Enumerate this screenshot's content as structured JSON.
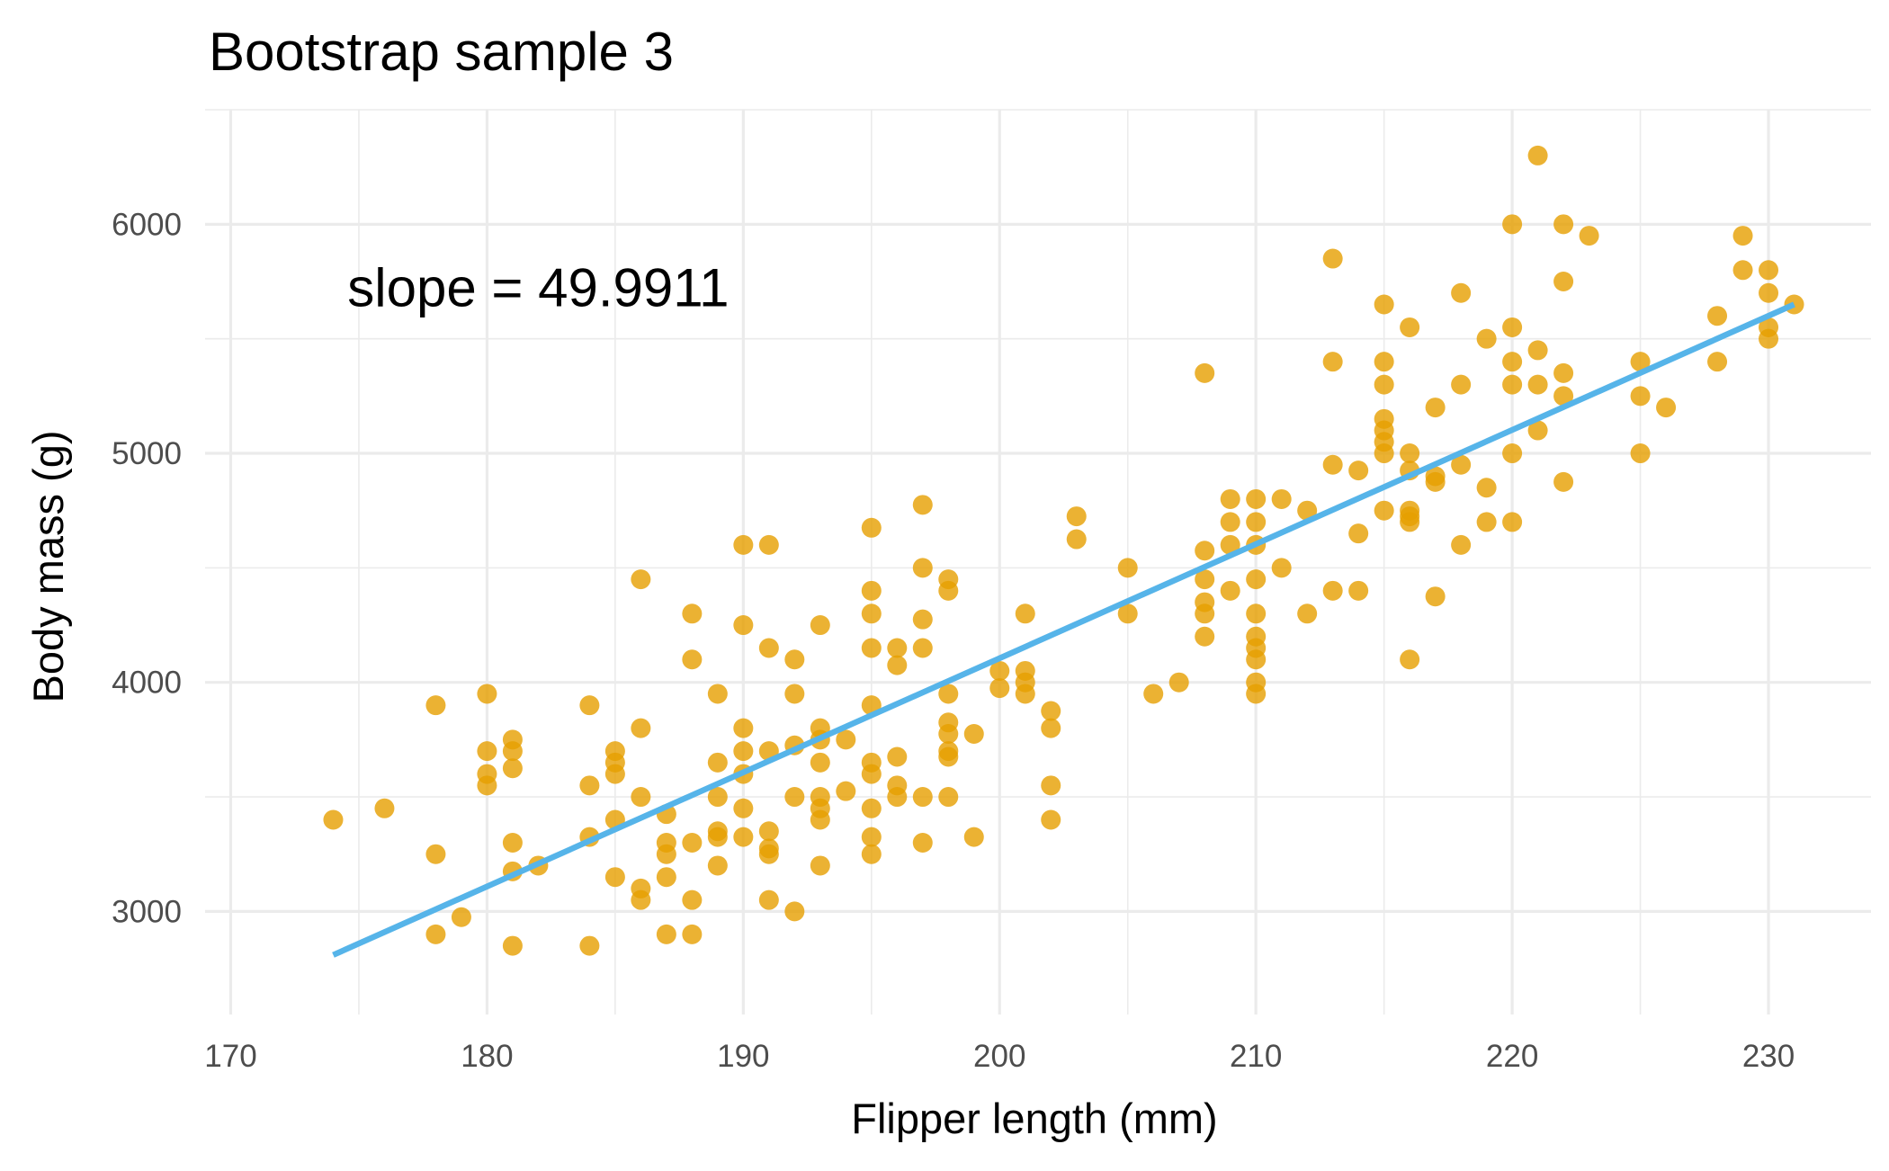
{
  "chart_data": {
    "type": "scatter",
    "title": "Bootstrap sample 3",
    "xlabel": "Flipper length (mm)",
    "ylabel": "Body mass (g)",
    "xlim": [
      169,
      234
    ],
    "ylim": [
      2550,
      6500
    ],
    "x_ticks": [
      170,
      180,
      190,
      200,
      210,
      220,
      230
    ],
    "y_ticks": [
      3000,
      4000,
      5000,
      6000
    ],
    "x_tick_labels": [
      "170",
      "180",
      "190",
      "200",
      "210",
      "220",
      "230"
    ],
    "y_tick_labels": [
      "3000",
      "4000",
      "5000",
      "6000"
    ],
    "grid": true,
    "point_color": "#E69F00",
    "line_color": "#56B4E9",
    "annotation": {
      "text": "slope = 49.9911",
      "x": 182,
      "y": 5720
    },
    "fit_line": {
      "x1": 174,
      "y1": 2810,
      "x2": 231,
      "y2": 5650
    },
    "points": [
      [
        174,
        3400
      ],
      [
        176,
        3450
      ],
      [
        178,
        3900
      ],
      [
        178,
        3250
      ],
      [
        178,
        2900
      ],
      [
        179,
        2975
      ],
      [
        180,
        3950
      ],
      [
        180,
        3700
      ],
      [
        180,
        3600
      ],
      [
        180,
        3550
      ],
      [
        181,
        3750
      ],
      [
        181,
        3700
      ],
      [
        181,
        3625
      ],
      [
        181,
        3300
      ],
      [
        181,
        3175
      ],
      [
        181,
        2850
      ],
      [
        182,
        3200
      ],
      [
        184,
        3900
      ],
      [
        184,
        3550
      ],
      [
        184,
        3325
      ],
      [
        184,
        2850
      ],
      [
        185,
        3700
      ],
      [
        185,
        3650
      ],
      [
        185,
        3600
      ],
      [
        185,
        3400
      ],
      [
        185,
        3150
      ],
      [
        186,
        4450
      ],
      [
        186,
        3800
      ],
      [
        186,
        3500
      ],
      [
        186,
        3100
      ],
      [
        186,
        3050
      ],
      [
        187,
        3425
      ],
      [
        187,
        3300
      ],
      [
        187,
        3250
      ],
      [
        187,
        3150
      ],
      [
        187,
        2900
      ],
      [
        188,
        4300
      ],
      [
        188,
        4100
      ],
      [
        188,
        3300
      ],
      [
        188,
        3050
      ],
      [
        188,
        2900
      ],
      [
        189,
        3950
      ],
      [
        189,
        3650
      ],
      [
        189,
        3500
      ],
      [
        189,
        3350
      ],
      [
        189,
        3325
      ],
      [
        189,
        3200
      ],
      [
        190,
        4600
      ],
      [
        190,
        4250
      ],
      [
        190,
        3800
      ],
      [
        190,
        3700
      ],
      [
        190,
        3600
      ],
      [
        190,
        3450
      ],
      [
        190,
        3325
      ],
      [
        191,
        4600
      ],
      [
        191,
        4150
      ],
      [
        191,
        3700
      ],
      [
        191,
        3350
      ],
      [
        191,
        3275
      ],
      [
        191,
        3250
      ],
      [
        191,
        3050
      ],
      [
        192,
        4100
      ],
      [
        192,
        3950
      ],
      [
        192,
        3725
      ],
      [
        192,
        3500
      ],
      [
        192,
        3000
      ],
      [
        193,
        4250
      ],
      [
        193,
        3800
      ],
      [
        193,
        3750
      ],
      [
        193,
        3650
      ],
      [
        193,
        3500
      ],
      [
        193,
        3450
      ],
      [
        193,
        3400
      ],
      [
        193,
        3200
      ],
      [
        194,
        3750
      ],
      [
        194,
        3525
      ],
      [
        195,
        4675
      ],
      [
        195,
        4400
      ],
      [
        195,
        4300
      ],
      [
        195,
        4150
      ],
      [
        195,
        3900
      ],
      [
        195,
        3650
      ],
      [
        195,
        3600
      ],
      [
        195,
        3450
      ],
      [
        195,
        3325
      ],
      [
        195,
        3250
      ],
      [
        196,
        4150
      ],
      [
        196,
        4075
      ],
      [
        196,
        3675
      ],
      [
        196,
        3550
      ],
      [
        196,
        3500
      ],
      [
        197,
        4775
      ],
      [
        197,
        4500
      ],
      [
        197,
        4275
      ],
      [
        197,
        4150
      ],
      [
        197,
        3500
      ],
      [
        197,
        3300
      ],
      [
        198,
        4450
      ],
      [
        198,
        4400
      ],
      [
        198,
        3950
      ],
      [
        198,
        3825
      ],
      [
        198,
        3775
      ],
      [
        198,
        3700
      ],
      [
        198,
        3675
      ],
      [
        198,
        3500
      ],
      [
        199,
        3775
      ],
      [
        199,
        3325
      ],
      [
        200,
        4050
      ],
      [
        200,
        3975
      ],
      [
        201,
        4300
      ],
      [
        201,
        4050
      ],
      [
        201,
        4000
      ],
      [
        201,
        3950
      ],
      [
        202,
        3875
      ],
      [
        202,
        3800
      ],
      [
        202,
        3550
      ],
      [
        202,
        3400
      ],
      [
        203,
        4725
      ],
      [
        203,
        4625
      ],
      [
        205,
        4500
      ],
      [
        205,
        4300
      ],
      [
        206,
        3950
      ],
      [
        207,
        4000
      ],
      [
        208,
        5350
      ],
      [
        208,
        4575
      ],
      [
        208,
        4450
      ],
      [
        208,
        4350
      ],
      [
        208,
        4300
      ],
      [
        208,
        4200
      ],
      [
        209,
        4800
      ],
      [
        209,
        4700
      ],
      [
        209,
        4600
      ],
      [
        209,
        4400
      ],
      [
        210,
        4800
      ],
      [
        210,
        4700
      ],
      [
        210,
        4600
      ],
      [
        210,
        4450
      ],
      [
        210,
        4300
      ],
      [
        210,
        4200
      ],
      [
        210,
        4150
      ],
      [
        210,
        4100
      ],
      [
        210,
        4000
      ],
      [
        210,
        3950
      ],
      [
        211,
        4800
      ],
      [
        211,
        4500
      ],
      [
        212,
        4750
      ],
      [
        212,
        4300
      ],
      [
        213,
        5850
      ],
      [
        213,
        5400
      ],
      [
        213,
        4950
      ],
      [
        213,
        4400
      ],
      [
        214,
        4925
      ],
      [
        214,
        4650
      ],
      [
        214,
        4400
      ],
      [
        215,
        5650
      ],
      [
        215,
        5400
      ],
      [
        215,
        5300
      ],
      [
        215,
        5150
      ],
      [
        215,
        5100
      ],
      [
        215,
        5050
      ],
      [
        215,
        5000
      ],
      [
        215,
        4750
      ],
      [
        216,
        5550
      ],
      [
        216,
        5000
      ],
      [
        216,
        4925
      ],
      [
        216,
        4750
      ],
      [
        216,
        4725
      ],
      [
        216,
        4700
      ],
      [
        216,
        4100
      ],
      [
        217,
        5200
      ],
      [
        217,
        4900
      ],
      [
        217,
        4875
      ],
      [
        217,
        4375
      ],
      [
        218,
        5700
      ],
      [
        218,
        5300
      ],
      [
        218,
        4950
      ],
      [
        218,
        4600
      ],
      [
        219,
        5500
      ],
      [
        219,
        4850
      ],
      [
        219,
        4700
      ],
      [
        220,
        6000
      ],
      [
        220,
        5550
      ],
      [
        220,
        5400
      ],
      [
        220,
        5300
      ],
      [
        220,
        5000
      ],
      [
        220,
        4700
      ],
      [
        221,
        6300
      ],
      [
        221,
        5450
      ],
      [
        221,
        5300
      ],
      [
        221,
        5100
      ],
      [
        222,
        6000
      ],
      [
        222,
        5750
      ],
      [
        222,
        5350
      ],
      [
        222,
        5250
      ],
      [
        222,
        4875
      ],
      [
        223,
        5950
      ],
      [
        225,
        5400
      ],
      [
        225,
        5250
      ],
      [
        225,
        5000
      ],
      [
        226,
        5200
      ],
      [
        228,
        5600
      ],
      [
        228,
        5400
      ],
      [
        229,
        5950
      ],
      [
        229,
        5800
      ],
      [
        230,
        5800
      ],
      [
        230,
        5700
      ],
      [
        230,
        5550
      ],
      [
        230,
        5500
      ],
      [
        231,
        5650
      ]
    ]
  }
}
